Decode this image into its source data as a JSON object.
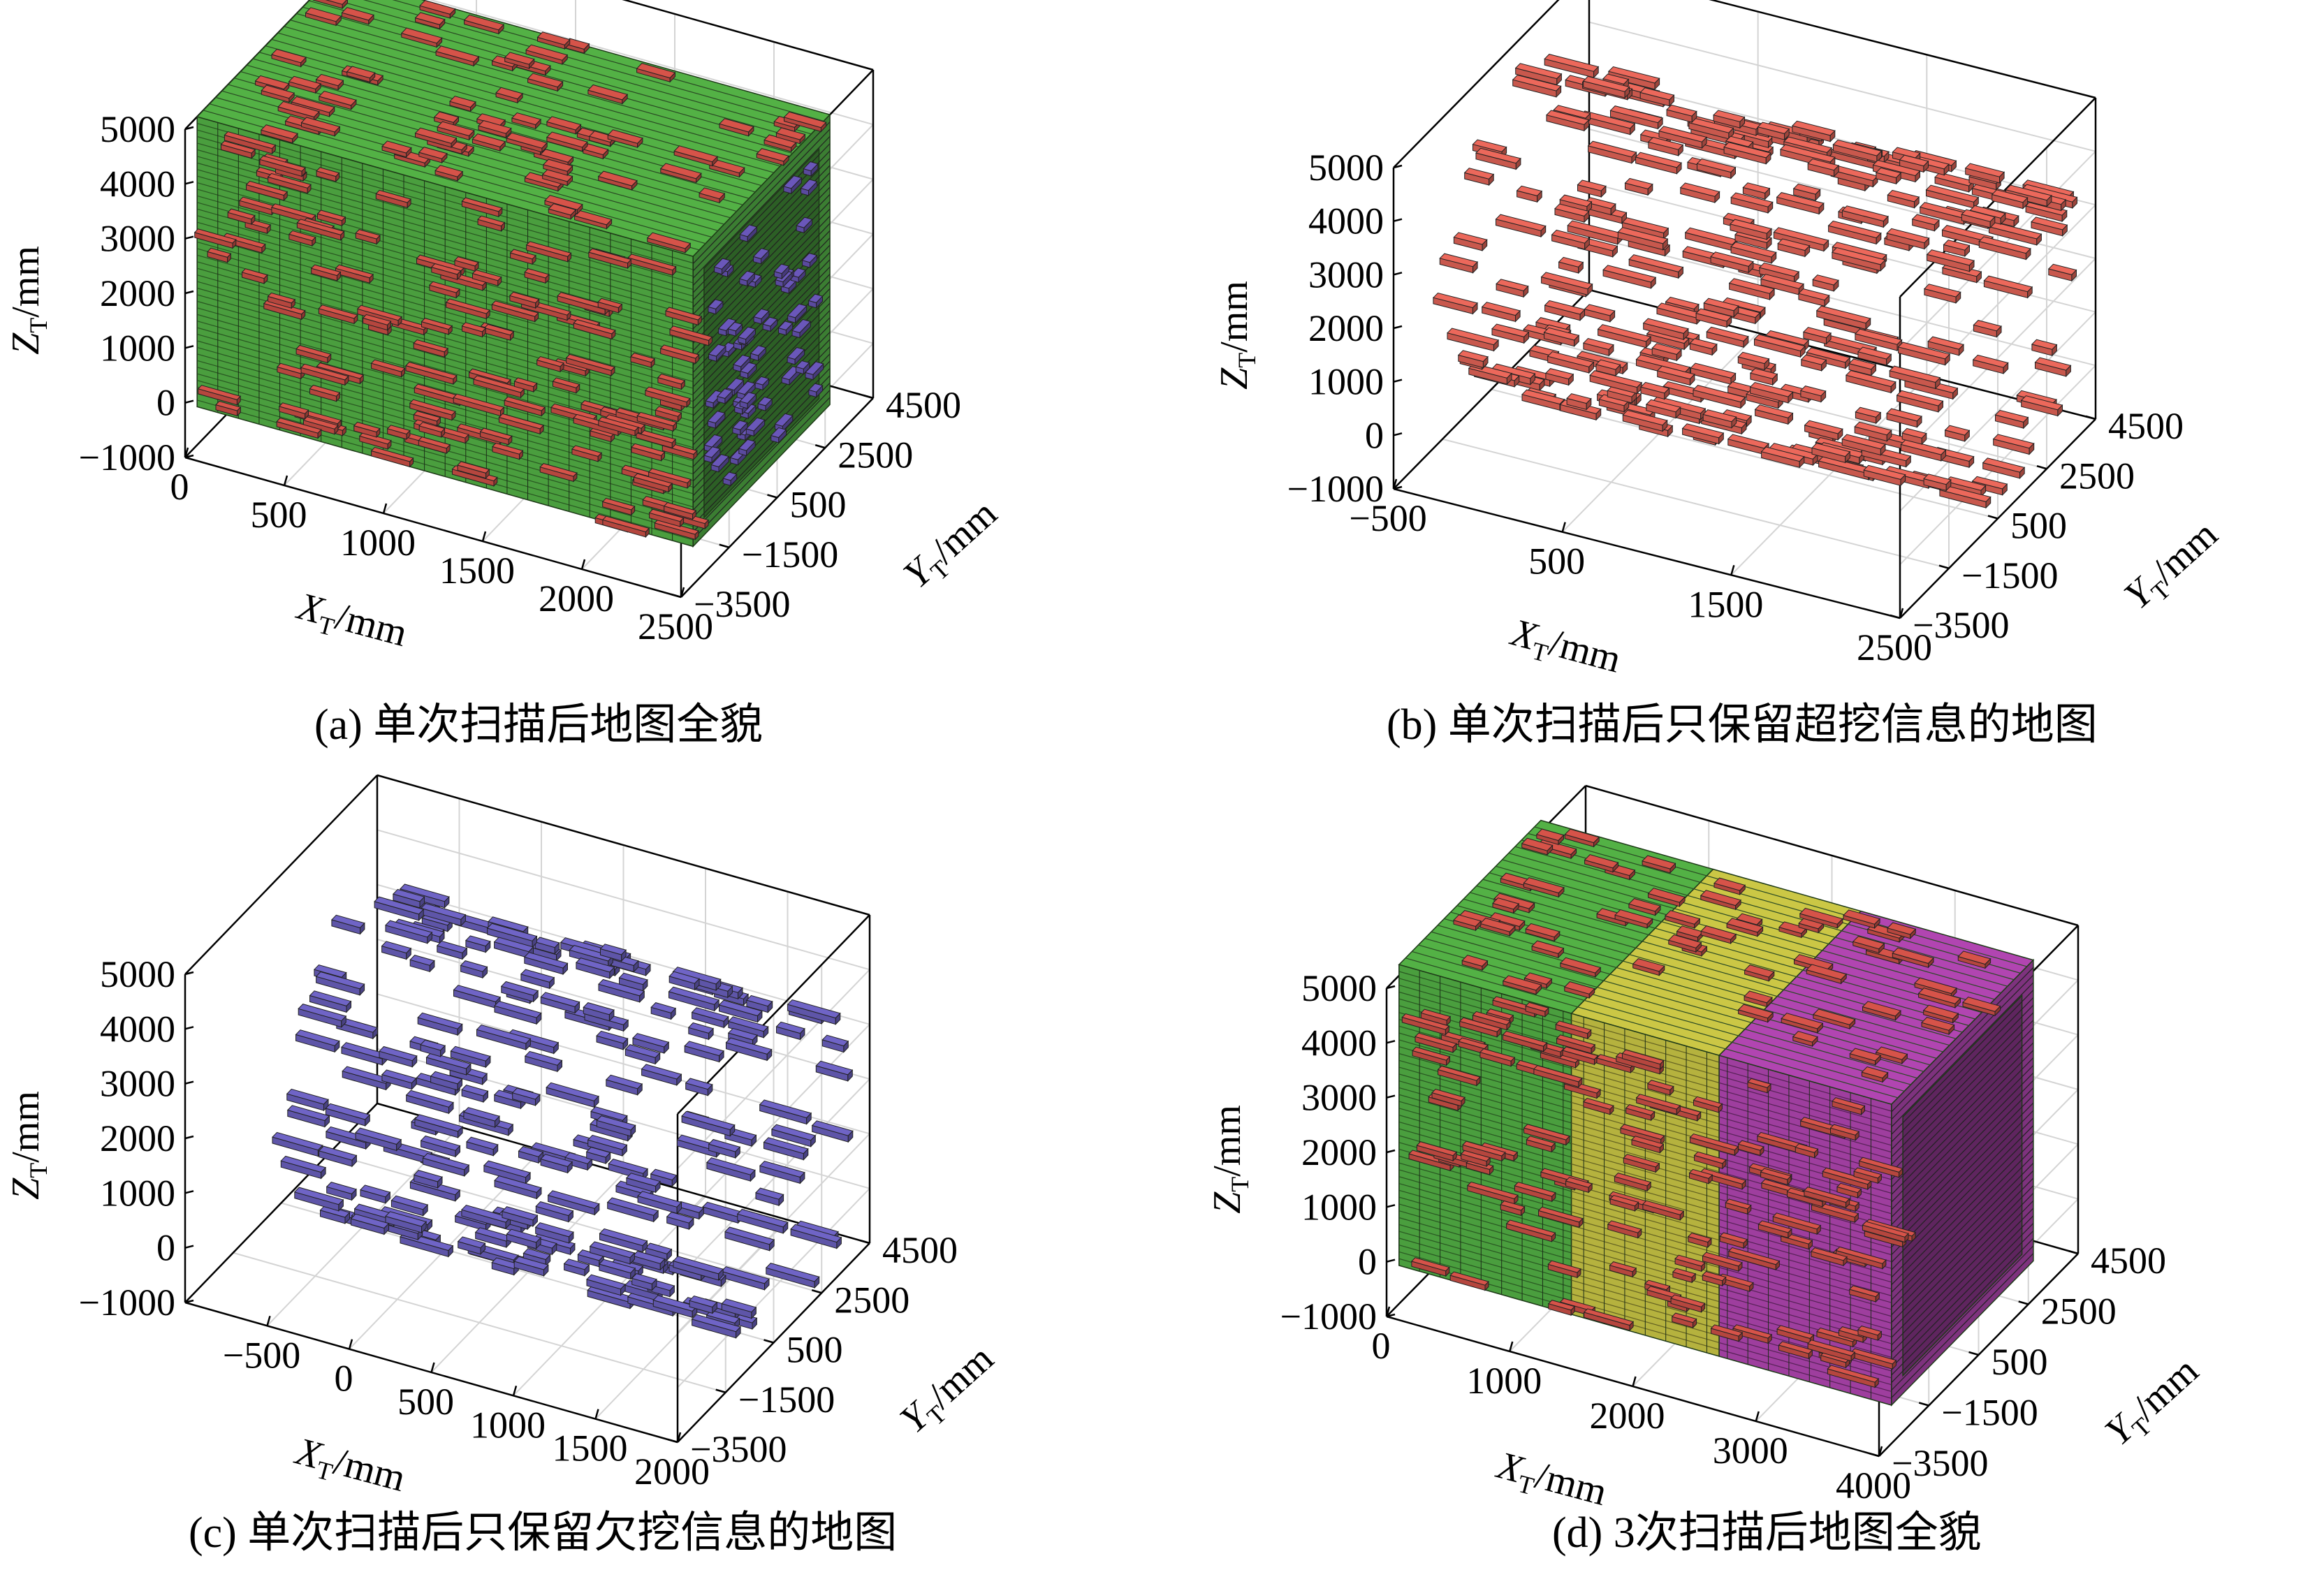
{
  "chart_data": [
    {
      "type": "voxel3d",
      "caption": "(a)  单次扫描后地图全貌",
      "x": {
        "label": "X",
        "sub": "T",
        "unit": "/mm",
        "ticks": [
          "0",
          "500",
          "1000",
          "1500",
          "2000",
          "2500"
        ],
        "range": [
          0,
          2500
        ]
      },
      "y": {
        "label": "Y",
        "sub": "T",
        "unit": "/mm",
        "ticks": [
          "−3500",
          "−1500",
          "500",
          "2500",
          "4500"
        ],
        "range": [
          -3500,
          4500
        ]
      },
      "z": {
        "label": "Z",
        "sub": "T",
        "unit": "/mm",
        "ticks": [
          "−1000",
          "0",
          "1000",
          "2000",
          "3000",
          "4000",
          "5000"
        ],
        "range": [
          -1000,
          5000
        ]
      },
      "grid": true,
      "content": {
        "mode": "box",
        "x": [
          0,
          2500
        ],
        "y": [
          -3000,
          2700
        ],
        "z": [
          -300,
          5000
        ],
        "colors": {
          "normal": "#4a9e3e",
          "over": "#b5463e",
          "under": "#5a4a9e"
        },
        "over_ratio": 0.16,
        "under_ratio": 0.05
      }
    },
    {
      "type": "voxel3d",
      "caption": "(b)  单次扫描后只保留超挖信息的地图",
      "x": {
        "label": "X",
        "sub": "T",
        "unit": "/mm",
        "ticks": [
          "−500",
          "500",
          "1500",
          "2500"
        ],
        "range": [
          -500,
          2500
        ]
      },
      "y": {
        "label": "Y",
        "sub": "T",
        "unit": "/mm",
        "ticks": [
          "−3500",
          "−1500",
          "500",
          "2500",
          "4500"
        ],
        "range": [
          -3500,
          4500
        ]
      },
      "z": {
        "label": "Z",
        "sub": "T",
        "unit": "/mm",
        "ticks": [
          "−1000",
          "0",
          "1000",
          "2000",
          "3000",
          "4000",
          "5000"
        ],
        "range": [
          -1000,
          5000
        ]
      },
      "grid": true,
      "content": {
        "mode": "shell_sparse",
        "x": [
          -300,
          2400
        ],
        "y": [
          -3000,
          3000
        ],
        "z": [
          -200,
          5000
        ],
        "color": "#c8584d",
        "density": 0.2
      }
    },
    {
      "type": "voxel3d",
      "caption": "(c)  单次扫描后只保留欠挖信息的地图",
      "x": {
        "label": "X",
        "sub": "T",
        "unit": "/mm",
        "ticks": [
          "−500",
          "0",
          "500",
          "1000",
          "1500",
          "2000"
        ],
        "range": [
          -1000,
          2000
        ]
      },
      "y": {
        "label": "Y",
        "sub": "T",
        "unit": "/mm",
        "ticks": [
          "−3500",
          "−1500",
          "500",
          "2500",
          "4500"
        ],
        "range": [
          -3500,
          4500
        ]
      },
      "z": {
        "label": "Z",
        "sub": "T",
        "unit": "/mm",
        "ticks": [
          "−1000",
          "0",
          "1000",
          "2000",
          "3000",
          "4000",
          "5000"
        ],
        "range": [
          -1000,
          5000
        ]
      },
      "grid": true,
      "content": {
        "mode": "shell_sparse",
        "x": [
          -500,
          1900
        ],
        "y": [
          -3000,
          3000
        ],
        "z": [
          -300,
          5000
        ],
        "color": "#5e55a8",
        "density": 0.17
      }
    },
    {
      "type": "voxel3d",
      "caption": "(d)  3次扫描后地图全貌",
      "x": {
        "label": "X",
        "sub": "T",
        "unit": "/mm",
        "ticks": [
          "0",
          "1000",
          "2000",
          "3000",
          "4000"
        ],
        "range": [
          0,
          4000
        ]
      },
      "y": {
        "label": "Y",
        "sub": "T",
        "unit": "/mm",
        "ticks": [
          "−3500",
          "−1500",
          "500",
          "2500",
          "4500"
        ],
        "range": [
          -3500,
          4500
        ]
      },
      "z": {
        "label": "Z",
        "sub": "T",
        "unit": "/mm",
        "ticks": [
          "−1000",
          "0",
          "1000",
          "2000",
          "3000",
          "4000",
          "5000"
        ],
        "range": [
          -1000,
          5000
        ]
      },
      "grid": true,
      "content": {
        "mode": "multibox",
        "x": [
          0,
          4000
        ],
        "y": [
          -3000,
          2700
        ],
        "z": [
          -300,
          5200
        ],
        "segments": [
          {
            "x": [
              0,
              1400
            ],
            "color": "#4a9e3e"
          },
          {
            "x": [
              1400,
              2600
            ],
            "color": "#b5b23e"
          },
          {
            "x": [
              2600,
              4000
            ],
            "color": "#9e3e9e"
          }
        ],
        "over_color": "#b5463e",
        "over_ratio": 0.14
      }
    }
  ]
}
